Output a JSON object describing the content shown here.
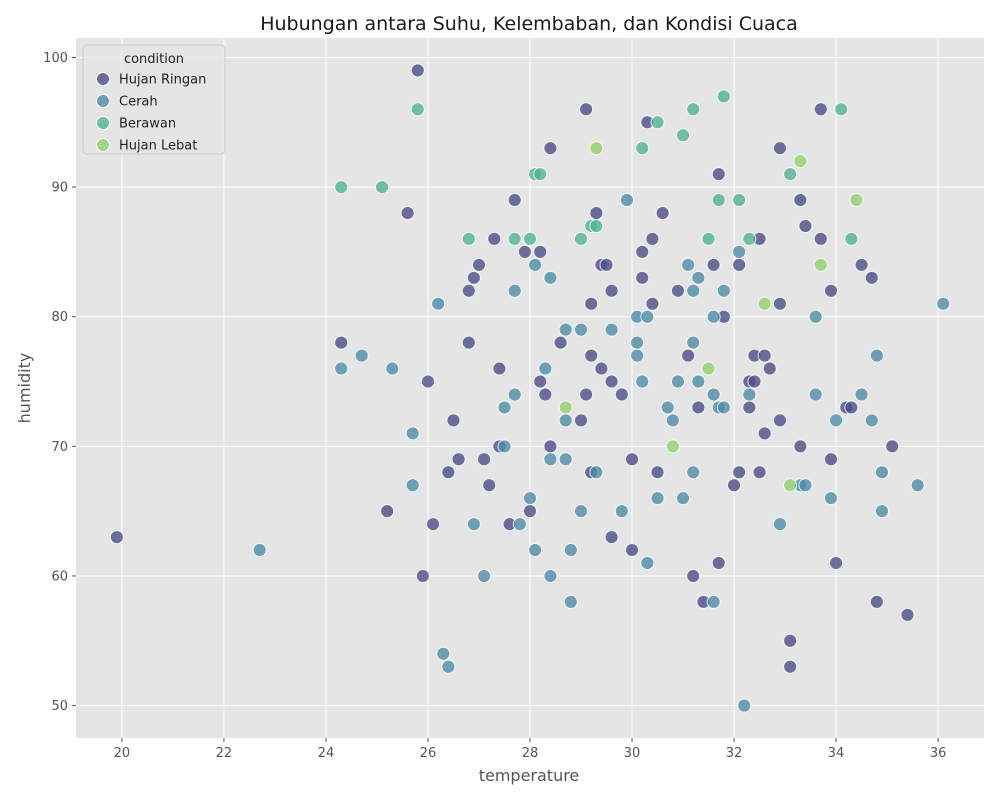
{
  "chart_data": {
    "type": "scatter",
    "title": "Hubungan antara Suhu, Kelembaban, dan Kondisi Cuaca",
    "xlabel": "temperature",
    "ylabel": "humidity",
    "xlim": [
      19.1,
      36.9
    ],
    "ylim": [
      47.5,
      101.5
    ],
    "xticks": [
      "20",
      "22",
      "24",
      "26",
      "28",
      "30",
      "32",
      "34",
      "36"
    ],
    "yticks": [
      "50",
      "60",
      "70",
      "80",
      "90",
      "100"
    ],
    "grid": true,
    "legend": {
      "title": "condition",
      "placement": "top-left"
    },
    "series": [
      {
        "name": "Hujan Ringan",
        "color": "#4a4a88",
        "points": [
          [
            25.8,
            99
          ],
          [
            29.1,
            96
          ],
          [
            33.7,
            96
          ],
          [
            30.3,
            95
          ],
          [
            28.4,
            93
          ],
          [
            32.9,
            93
          ],
          [
            31.7,
            91
          ],
          [
            27.7,
            89
          ],
          [
            33.3,
            89
          ],
          [
            25.6,
            88
          ],
          [
            29.3,
            88
          ],
          [
            30.6,
            88
          ],
          [
            33.4,
            87
          ],
          [
            27.3,
            86
          ],
          [
            30.4,
            86
          ],
          [
            32.5,
            86
          ],
          [
            33.7,
            86
          ],
          [
            27.9,
            85
          ],
          [
            28.2,
            85
          ],
          [
            30.2,
            85
          ],
          [
            29.4,
            84
          ],
          [
            29.5,
            84
          ],
          [
            27.0,
            84
          ],
          [
            31.6,
            84
          ],
          [
            32.1,
            84
          ],
          [
            34.5,
            84
          ],
          [
            26.9,
            83
          ],
          [
            30.2,
            83
          ],
          [
            34.7,
            83
          ],
          [
            26.8,
            82
          ],
          [
            29.6,
            82
          ],
          [
            30.9,
            82
          ],
          [
            33.9,
            82
          ],
          [
            29.2,
            81
          ],
          [
            30.4,
            81
          ],
          [
            32.9,
            81
          ],
          [
            31.8,
            80
          ],
          [
            24.3,
            78
          ],
          [
            26.8,
            78
          ],
          [
            28.6,
            78
          ],
          [
            29.2,
            77
          ],
          [
            31.1,
            77
          ],
          [
            32.4,
            77
          ],
          [
            32.6,
            77
          ],
          [
            27.4,
            76
          ],
          [
            29.4,
            76
          ],
          [
            32.7,
            76
          ],
          [
            26.0,
            75
          ],
          [
            28.2,
            75
          ],
          [
            29.6,
            75
          ],
          [
            32.3,
            75
          ],
          [
            32.4,
            75
          ],
          [
            28.3,
            74
          ],
          [
            29.1,
            74
          ],
          [
            29.8,
            74
          ],
          [
            31.3,
            73
          ],
          [
            32.3,
            73
          ],
          [
            34.2,
            73
          ],
          [
            34.3,
            73
          ],
          [
            26.5,
            72
          ],
          [
            29.0,
            72
          ],
          [
            32.9,
            72
          ],
          [
            32.6,
            71
          ],
          [
            27.4,
            70
          ],
          [
            28.4,
            70
          ],
          [
            33.3,
            70
          ],
          [
            35.1,
            70
          ],
          [
            26.6,
            69
          ],
          [
            27.1,
            69
          ],
          [
            30.0,
            69
          ],
          [
            33.9,
            69
          ],
          [
            26.4,
            68
          ],
          [
            29.2,
            68
          ],
          [
            30.5,
            68
          ],
          [
            32.1,
            68
          ],
          [
            32.5,
            68
          ],
          [
            27.2,
            67
          ],
          [
            32.0,
            67
          ],
          [
            25.2,
            65
          ],
          [
            28.0,
            65
          ],
          [
            26.1,
            64
          ],
          [
            27.6,
            64
          ],
          [
            29.6,
            63
          ],
          [
            19.9,
            63
          ],
          [
            30.0,
            62
          ],
          [
            31.7,
            61
          ],
          [
            34.0,
            61
          ],
          [
            25.9,
            60
          ],
          [
            31.2,
            60
          ],
          [
            31.4,
            58
          ],
          [
            34.8,
            58
          ],
          [
            35.4,
            57
          ],
          [
            33.1,
            55
          ],
          [
            33.1,
            53
          ]
        ]
      },
      {
        "name": "Cerah",
        "color": "#4a8aa6",
        "points": [
          [
            29.9,
            89
          ],
          [
            32.1,
            85
          ],
          [
            28.1,
            84
          ],
          [
            31.1,
            84
          ],
          [
            28.4,
            83
          ],
          [
            31.3,
            83
          ],
          [
            26.2,
            81
          ],
          [
            36.1,
            81
          ],
          [
            27.7,
            82
          ],
          [
            31.2,
            82
          ],
          [
            31.8,
            82
          ],
          [
            30.1,
            80
          ],
          [
            30.3,
            80
          ],
          [
            31.6,
            80
          ],
          [
            33.6,
            80
          ],
          [
            28.7,
            79
          ],
          [
            29.0,
            79
          ],
          [
            29.6,
            79
          ],
          [
            30.1,
            78
          ],
          [
            31.2,
            78
          ],
          [
            24.7,
            77
          ],
          [
            30.1,
            77
          ],
          [
            34.8,
            77
          ],
          [
            24.3,
            76
          ],
          [
            25.3,
            76
          ],
          [
            28.3,
            76
          ],
          [
            30.2,
            75
          ],
          [
            30.9,
            75
          ],
          [
            31.3,
            75
          ],
          [
            27.7,
            74
          ],
          [
            31.6,
            74
          ],
          [
            32.3,
            74
          ],
          [
            33.6,
            74
          ],
          [
            34.5,
            74
          ],
          [
            27.5,
            73
          ],
          [
            30.7,
            73
          ],
          [
            31.7,
            73
          ],
          [
            31.8,
            73
          ],
          [
            28.7,
            72
          ],
          [
            30.8,
            72
          ],
          [
            34.0,
            72
          ],
          [
            34.7,
            72
          ],
          [
            25.7,
            71
          ],
          [
            27.5,
            70
          ],
          [
            28.4,
            69
          ],
          [
            28.7,
            69
          ],
          [
            29.3,
            68
          ],
          [
            31.2,
            68
          ],
          [
            34.9,
            68
          ],
          [
            25.7,
            67
          ],
          [
            33.3,
            67
          ],
          [
            33.4,
            67
          ],
          [
            35.6,
            67
          ],
          [
            28.0,
            66
          ],
          [
            30.5,
            66
          ],
          [
            31.0,
            66
          ],
          [
            33.9,
            66
          ],
          [
            29.0,
            65
          ],
          [
            29.8,
            65
          ],
          [
            34.9,
            65
          ],
          [
            26.9,
            64
          ],
          [
            27.8,
            64
          ],
          [
            32.9,
            64
          ],
          [
            22.7,
            62
          ],
          [
            28.1,
            62
          ],
          [
            28.8,
            62
          ],
          [
            30.3,
            61
          ],
          [
            27.1,
            60
          ],
          [
            28.4,
            60
          ],
          [
            28.8,
            58
          ],
          [
            31.6,
            58
          ],
          [
            26.3,
            54
          ],
          [
            26.4,
            53
          ],
          [
            32.2,
            50
          ]
        ]
      },
      {
        "name": "Berawan",
        "color": "#4db38e",
        "points": [
          [
            31.8,
            97
          ],
          [
            25.8,
            96
          ],
          [
            31.2,
            96
          ],
          [
            34.1,
            96
          ],
          [
            30.5,
            95
          ],
          [
            31.0,
            94
          ],
          [
            30.2,
            93
          ],
          [
            28.1,
            91
          ],
          [
            28.2,
            91
          ],
          [
            33.1,
            91
          ],
          [
            24.3,
            90
          ],
          [
            25.1,
            90
          ],
          [
            31.7,
            89
          ],
          [
            32.1,
            89
          ],
          [
            29.2,
            87
          ],
          [
            29.3,
            87
          ],
          [
            26.8,
            86
          ],
          [
            27.7,
            86
          ],
          [
            28.0,
            86
          ],
          [
            29.0,
            86
          ],
          [
            31.5,
            86
          ],
          [
            32.3,
            86
          ],
          [
            34.3,
            86
          ]
        ]
      },
      {
        "name": "Hujan Lebat",
        "color": "#8fd16a",
        "points": [
          [
            29.3,
            93
          ],
          [
            33.3,
            92
          ],
          [
            34.4,
            89
          ],
          [
            33.7,
            84
          ],
          [
            32.6,
            81
          ],
          [
            31.5,
            76
          ],
          [
            28.7,
            73
          ],
          [
            30.8,
            70
          ],
          [
            33.1,
            67
          ]
        ]
      }
    ]
  }
}
